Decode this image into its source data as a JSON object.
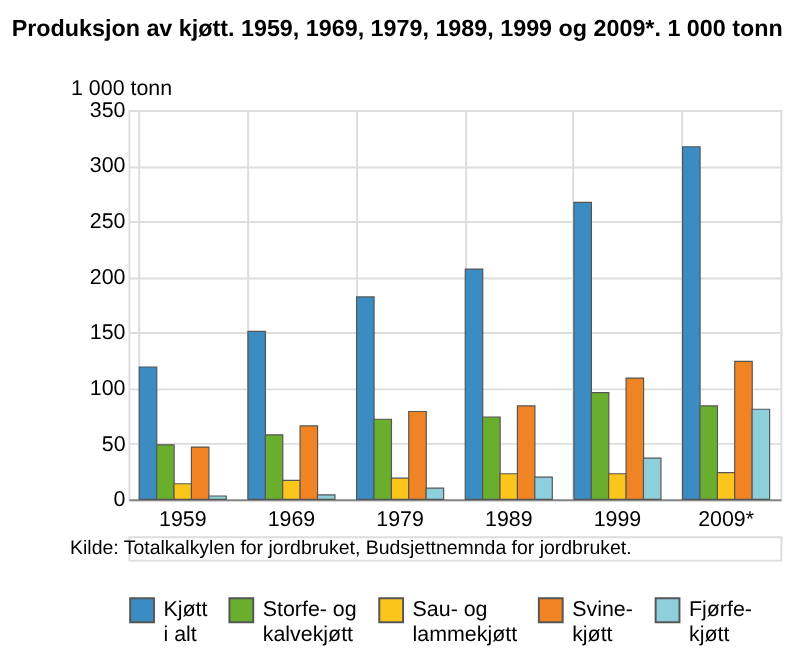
{
  "chart_data": {
    "type": "bar",
    "title": "Produksjon av kjøtt. 1959, 1969, 1979, 1989, 1999 og 2009*. 1 000 tonn",
    "ylabel": "1 000 tonn",
    "categories": [
      "1959",
      "1969",
      "1979",
      "1989",
      "1999",
      "2009*"
    ],
    "series": [
      {
        "name": "Kjøtt\ni alt",
        "color": "#3a8cc2",
        "values": [
          119,
          151,
          182,
          207,
          267,
          317
        ]
      },
      {
        "name": "Storfe- og\nkalvekjøtt",
        "color": "#6aae2e",
        "values": [
          49,
          58,
          72,
          74,
          96,
          84
        ]
      },
      {
        "name": "Sau- og\nlammekjøtt",
        "color": "#fbc51c",
        "values": [
          14,
          17,
          19,
          23,
          23,
          24
        ]
      },
      {
        "name": "Svine-\nkjøtt",
        "color": "#f08425",
        "values": [
          47,
          66,
          79,
          84,
          109,
          124
        ]
      },
      {
        "name": "Fjørfe-\nkjøtt",
        "color": "#8ecfdc",
        "values": [
          3,
          4,
          10,
          20,
          37,
          81
        ]
      }
    ],
    "ylim": [
      0,
      350
    ],
    "yticks": [
      0,
      50,
      100,
      150,
      200,
      250,
      300,
      350
    ],
    "grid": true,
    "legend": "bottom",
    "annotations": [
      "Kilde: Totalkalkylen for jordbruket, Budsjettnemnda for jordbruket."
    ]
  }
}
